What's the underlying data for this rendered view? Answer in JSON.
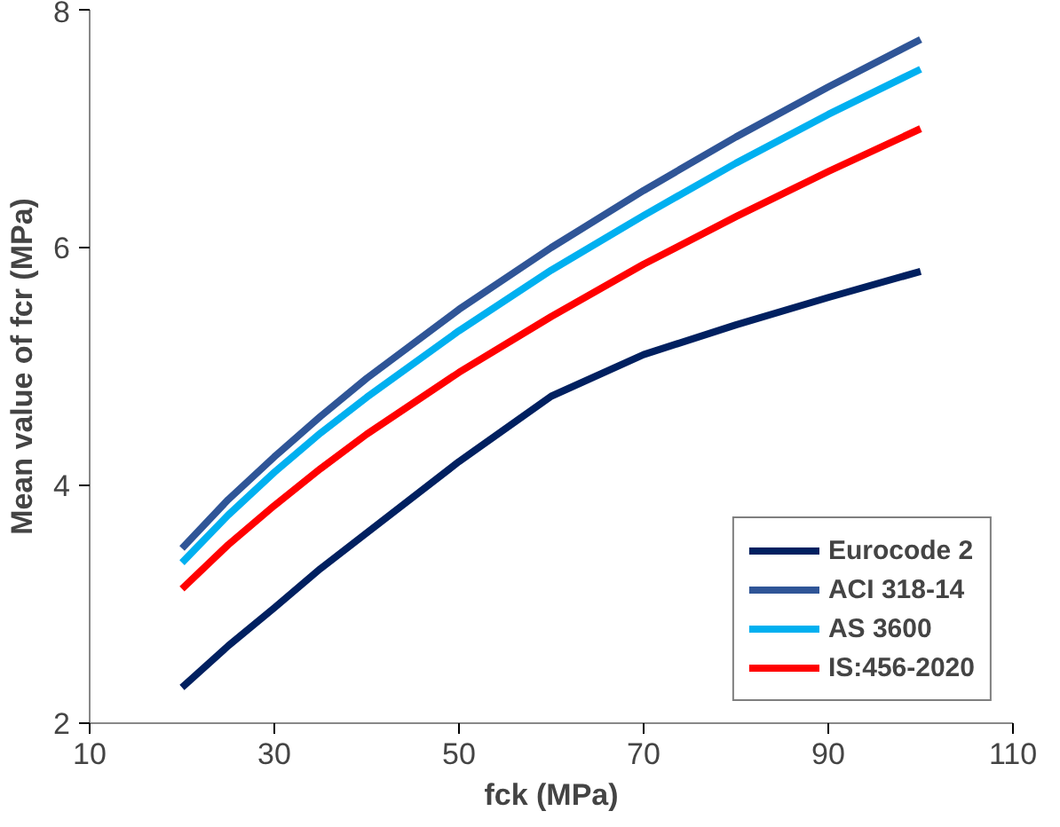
{
  "chart_data": {
    "type": "line",
    "xlabel": "fck (MPa)",
    "ylabel": "Mean value of fcr (MPa)",
    "x": [
      20,
      25,
      30,
      35,
      40,
      50,
      60,
      70,
      80,
      90,
      100
    ],
    "xlim": [
      10,
      110
    ],
    "xticks": [
      10,
      30,
      50,
      70,
      90,
      110
    ],
    "ylim": [
      2,
      8
    ],
    "yticks": [
      2,
      4,
      6,
      8
    ],
    "grid": false,
    "legend": "bottom right",
    "marker": "none",
    "line_style": "solid",
    "series": [
      {
        "name": "Eurocode 2",
        "color": "#002060",
        "values": [
          2.3,
          2.65,
          2.97,
          3.3,
          3.6,
          4.2,
          4.75,
          5.1,
          5.35,
          5.58,
          5.8
        ]
      },
      {
        "name": "ACI 318-14",
        "color": "#2f5597",
        "values": [
          3.47,
          3.88,
          4.24,
          4.58,
          4.9,
          5.48,
          6.0,
          6.48,
          6.93,
          7.35,
          7.75
        ]
      },
      {
        "name": "AS 3600",
        "color": "#00b0f0",
        "values": [
          3.35,
          3.75,
          4.11,
          4.44,
          4.74,
          5.3,
          5.81,
          6.27,
          6.71,
          7.12,
          7.5
        ]
      },
      {
        "name": "IS:456-2020",
        "color": "#ff0000",
        "values": [
          3.13,
          3.5,
          3.83,
          4.14,
          4.43,
          4.95,
          5.42,
          5.86,
          6.26,
          6.64,
          7.0
        ]
      }
    ]
  }
}
